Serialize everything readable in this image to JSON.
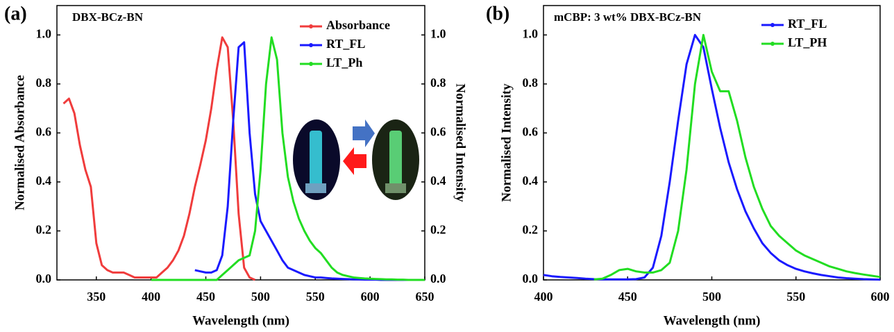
{
  "chart_data": [
    {
      "type": "line",
      "panel_label": "(a)",
      "title": "DBX-BCz-BN",
      "xlabel": "Wavelength (nm)",
      "ylabel": "Normalised Absorbance",
      "y2label": "Normalised Intensity",
      "xlim": [
        314,
        650
      ],
      "xticks": [
        350,
        400,
        450,
        500,
        550,
        600,
        650
      ],
      "ylim": [
        0,
        1.12
      ],
      "yticks": [
        {
          "value": 0,
          "label": "0.0"
        },
        {
          "value": 0.2,
          "label": "0.2"
        },
        {
          "value": 0.4,
          "label": "0.4"
        },
        {
          "value": 0.6,
          "label": "0.6"
        },
        {
          "value": 0.8,
          "label": "0.8"
        },
        {
          "value": 1,
          "label": "1.0"
        }
      ],
      "y2lim": [
        0,
        1.12
      ],
      "y2ticks": [
        {
          "value": 0,
          "label": "0.0"
        },
        {
          "value": 0.2,
          "label": "0.2"
        },
        {
          "value": 0.4,
          "label": "0.4"
        },
        {
          "value": 0.6,
          "label": "0.6"
        },
        {
          "value": 0.8,
          "label": "0.8"
        },
        {
          "value": 1,
          "label": "1.0"
        }
      ],
      "legend": "upper right",
      "x": [
        320,
        325,
        330,
        335,
        340,
        345,
        350,
        355,
        360,
        365,
        370,
        375,
        380,
        385,
        390,
        395,
        400,
        405,
        410,
        415,
        420,
        425,
        430,
        435,
        440,
        445,
        450,
        455,
        460,
        465,
        470,
        475,
        480,
        485,
        490,
        495,
        500,
        505,
        510,
        515,
        520,
        525,
        530,
        535,
        540,
        545,
        550,
        555,
        560,
        565,
        570,
        575,
        580,
        585,
        590,
        595,
        600,
        605,
        610,
        615,
        620,
        625,
        630,
        635,
        640,
        645,
        650
      ],
      "series": [
        {
          "name": "Absorbance",
          "color": "#f03c3c",
          "values": [
            0.72,
            0.74,
            0.68,
            0.55,
            0.45,
            0.38,
            0.15,
            0.06,
            0.04,
            0.03,
            0.03,
            0.03,
            0.02,
            0.01,
            0.01,
            0.01,
            0.01,
            0.01,
            0.03,
            0.05,
            0.08,
            0.12,
            0.18,
            0.27,
            0.38,
            0.47,
            0.57,
            0.7,
            0.86,
            0.99,
            0.95,
            0.65,
            0.27,
            0.05,
            0.01,
            0,
            null,
            null,
            null,
            null,
            null,
            null,
            null,
            null,
            null,
            null,
            null,
            null,
            null,
            null,
            null,
            null,
            null,
            null,
            null,
            null,
            null,
            null,
            null,
            null,
            null,
            null,
            null,
            null,
            null,
            null,
            null
          ]
        },
        {
          "name": "RT_FL",
          "color": "#1a1aff",
          "axis": "y2",
          "values": [
            null,
            null,
            null,
            null,
            null,
            null,
            null,
            null,
            null,
            null,
            null,
            null,
            null,
            null,
            null,
            null,
            null,
            null,
            null,
            null,
            null,
            null,
            null,
            null,
            0.04,
            0.035,
            0.03,
            0.03,
            0.04,
            0.1,
            0.3,
            0.65,
            0.95,
            0.97,
            0.6,
            0.35,
            0.24,
            0.2,
            0.16,
            0.12,
            0.08,
            0.05,
            0.04,
            0.03,
            0.02,
            0.015,
            0.01,
            0.01,
            0.008,
            0.006,
            0.005,
            0.004,
            0.003,
            0.002,
            0.002,
            0.001,
            0.001,
            0.001,
            0,
            0,
            0,
            0,
            0,
            0,
            0,
            0,
            0
          ]
        },
        {
          "name": "LT_Ph",
          "color": "#22dd22",
          "axis": "y2",
          "values": [
            null,
            null,
            null,
            null,
            null,
            null,
            null,
            null,
            null,
            null,
            null,
            null,
            null,
            null,
            null,
            null,
            0,
            0,
            0,
            0,
            0,
            0,
            0,
            0,
            0,
            0,
            0,
            0,
            0,
            0.02,
            0.04,
            0.06,
            0.08,
            0.09,
            0.1,
            0.2,
            0.45,
            0.8,
            0.99,
            0.9,
            0.6,
            0.42,
            0.32,
            0.25,
            0.2,
            0.16,
            0.13,
            0.11,
            0.08,
            0.05,
            0.03,
            0.02,
            0.015,
            0.01,
            0.008,
            0.006,
            0.005,
            0.004,
            0.003,
            0.002,
            0.002,
            0.001,
            0.001,
            0,
            0,
            0,
            0
          ]
        }
      ]
    },
    {
      "type": "line",
      "panel_label": "(b)",
      "title": "mCBP: 3 wt% DBX-BCz-BN",
      "xlabel": "Wavelength (nm)",
      "ylabel": "Normalised Intensity",
      "xlim": [
        400,
        600
      ],
      "xticks": [
        400,
        450,
        500,
        550,
        600
      ],
      "ylim": [
        0,
        1.12
      ],
      "yticks": [
        {
          "value": 0,
          "label": "0.0"
        },
        {
          "value": 0.2,
          "label": "0.2"
        },
        {
          "value": 0.4,
          "label": "0.4"
        },
        {
          "value": 0.6,
          "label": "0.6"
        },
        {
          "value": 0.8,
          "label": "0.8"
        },
        {
          "value": 1,
          "label": "1.0"
        }
      ],
      "legend": "upper right",
      "x": [
        400,
        405,
        410,
        415,
        420,
        425,
        430,
        435,
        440,
        445,
        450,
        455,
        460,
        465,
        470,
        475,
        480,
        485,
        490,
        495,
        500,
        505,
        510,
        515,
        520,
        525,
        530,
        535,
        540,
        545,
        550,
        555,
        560,
        565,
        570,
        575,
        580,
        585,
        590,
        595,
        600
      ],
      "series": [
        {
          "name": "RT_FL",
          "color": "#1a1aff",
          "values": [
            0.02,
            0.015,
            0.012,
            0.01,
            0.008,
            0.005,
            0.003,
            0.002,
            0.002,
            0.002,
            0.002,
            0.003,
            0.01,
            0.05,
            0.18,
            0.4,
            0.65,
            0.88,
            1.0,
            0.95,
            0.78,
            0.62,
            0.48,
            0.37,
            0.28,
            0.21,
            0.15,
            0.11,
            0.08,
            0.06,
            0.045,
            0.035,
            0.027,
            0.02,
            0.015,
            0.01,
            0.007,
            0.005,
            0.003,
            0.002,
            0.001
          ]
        },
        {
          "name": "LT_PH",
          "color": "#22dd22",
          "values": [
            null,
            null,
            null,
            null,
            null,
            null,
            0.002,
            0.005,
            0.02,
            0.04,
            0.045,
            0.035,
            0.03,
            0.03,
            0.04,
            0.07,
            0.2,
            0.45,
            0.8,
            1.0,
            0.85,
            0.77,
            0.77,
            0.65,
            0.5,
            0.38,
            0.29,
            0.22,
            0.18,
            0.15,
            0.12,
            0.1,
            0.085,
            0.07,
            0.055,
            0.045,
            0.035,
            0.028,
            0.022,
            0.017,
            0.012
          ]
        }
      ]
    }
  ]
}
